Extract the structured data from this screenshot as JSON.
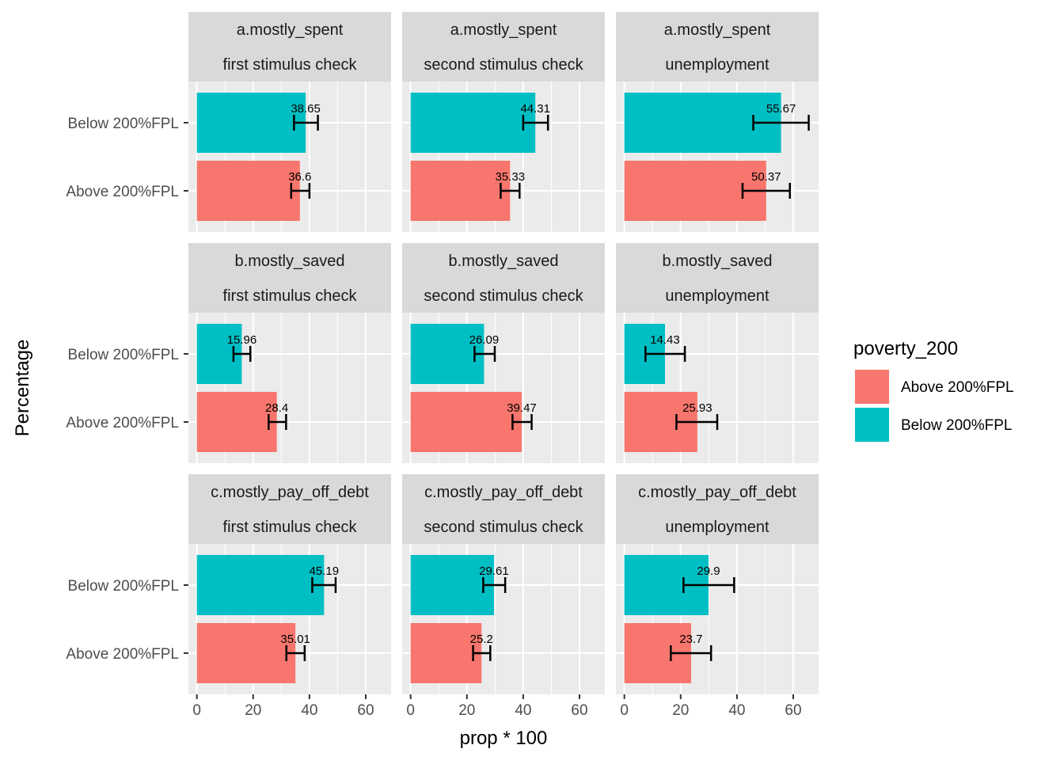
{
  "chart_data": {
    "type": "bar",
    "orientation": "horizontal",
    "facet_rows": [
      "a.mostly_spent",
      "b.mostly_saved",
      "c.mostly_pay_off_debt"
    ],
    "facet_cols": [
      "first stimulus check",
      "second stimulus check",
      "unemployment"
    ],
    "categories": [
      "Below 200%FPL",
      "Above 200%FPL"
    ],
    "xlabel": "prop * 100",
    "ylabel": "Percentage",
    "xlim": [
      -3,
      69
    ],
    "xticks": [
      0,
      20,
      40,
      60
    ],
    "xtick_labels": [
      "0",
      "20",
      "40",
      "60"
    ],
    "grid": true,
    "legend": {
      "title": "poverty_200",
      "position": "right",
      "entries": [
        {
          "label": "Above 200%FPL",
          "color": "#F8766D"
        },
        {
          "label": "Below 200%FPL",
          "color": "#00BFC4"
        }
      ]
    },
    "panels": [
      {
        "row": "a.mostly_spent",
        "col": "first stimulus check",
        "bars": [
          {
            "category": "Below 200%FPL",
            "value": 38.65,
            "label": "38.65",
            "err": [
              34.5,
              43.0
            ]
          },
          {
            "category": "Above 200%FPL",
            "value": 36.6,
            "label": "36.6",
            "err": [
              33.5,
              40.0
            ]
          }
        ]
      },
      {
        "row": "a.mostly_spent",
        "col": "second stimulus check",
        "bars": [
          {
            "category": "Below 200%FPL",
            "value": 44.31,
            "label": "44.31",
            "err": [
              40.0,
              48.8
            ]
          },
          {
            "category": "Above 200%FPL",
            "value": 35.33,
            "label": "35.33",
            "err": [
              32.0,
              38.7
            ]
          }
        ]
      },
      {
        "row": "a.mostly_spent",
        "col": "unemployment",
        "bars": [
          {
            "category": "Below 200%FPL",
            "value": 55.67,
            "label": "55.67",
            "err": [
              45.8,
              65.5
            ]
          },
          {
            "category": "Above 200%FPL",
            "value": 50.37,
            "label": "50.37",
            "err": [
              42.0,
              58.8
            ]
          }
        ]
      },
      {
        "row": "b.mostly_saved",
        "col": "first stimulus check",
        "bars": [
          {
            "category": "Below 200%FPL",
            "value": 15.96,
            "label": "15.96",
            "err": [
              13.0,
              19.0
            ]
          },
          {
            "category": "Above 200%FPL",
            "value": 28.4,
            "label": "28.4",
            "err": [
              25.5,
              31.7
            ]
          }
        ]
      },
      {
        "row": "b.mostly_saved",
        "col": "second stimulus check",
        "bars": [
          {
            "category": "Below 200%FPL",
            "value": 26.09,
            "label": "26.09",
            "err": [
              22.7,
              29.9
            ]
          },
          {
            "category": "Above 200%FPL",
            "value": 39.47,
            "label": "39.47",
            "err": [
              36.2,
              43.0
            ]
          }
        ]
      },
      {
        "row": "b.mostly_saved",
        "col": "unemployment",
        "bars": [
          {
            "category": "Below 200%FPL",
            "value": 14.43,
            "label": "14.43",
            "err": [
              7.5,
              21.5
            ]
          },
          {
            "category": "Above 200%FPL",
            "value": 25.93,
            "label": "25.93",
            "err": [
              18.5,
              33.0
            ]
          }
        ]
      },
      {
        "row": "c.mostly_pay_off_debt",
        "col": "first stimulus check",
        "bars": [
          {
            "category": "Below 200%FPL",
            "value": 45.19,
            "label": "45.19",
            "err": [
              41.0,
              49.3
            ]
          },
          {
            "category": "Above 200%FPL",
            "value": 35.01,
            "label": "35.01",
            "err": [
              31.8,
              38.3
            ]
          }
        ]
      },
      {
        "row": "c.mostly_pay_off_debt",
        "col": "second stimulus check",
        "bars": [
          {
            "category": "Below 200%FPL",
            "value": 29.61,
            "label": "29.61",
            "err": [
              25.8,
              33.6
            ]
          },
          {
            "category": "Above 200%FPL",
            "value": 25.2,
            "label": "25.2",
            "err": [
              22.2,
              28.3
            ]
          }
        ]
      },
      {
        "row": "c.mostly_pay_off_debt",
        "col": "unemployment",
        "bars": [
          {
            "category": "Below 200%FPL",
            "value": 29.9,
            "label": "29.9",
            "err": [
              21.0,
              39.0
            ]
          },
          {
            "category": "Above 200%FPL",
            "value": 23.7,
            "label": "23.7",
            "err": [
              16.5,
              30.8
            ]
          }
        ]
      }
    ]
  },
  "colors": {
    "above": "#F8766D",
    "below": "#00BFC4",
    "panel_bg": "#EBEBEB",
    "strip_bg": "#D9D9D9",
    "grid": "#FFFFFF",
    "error_bar": "#000000"
  }
}
